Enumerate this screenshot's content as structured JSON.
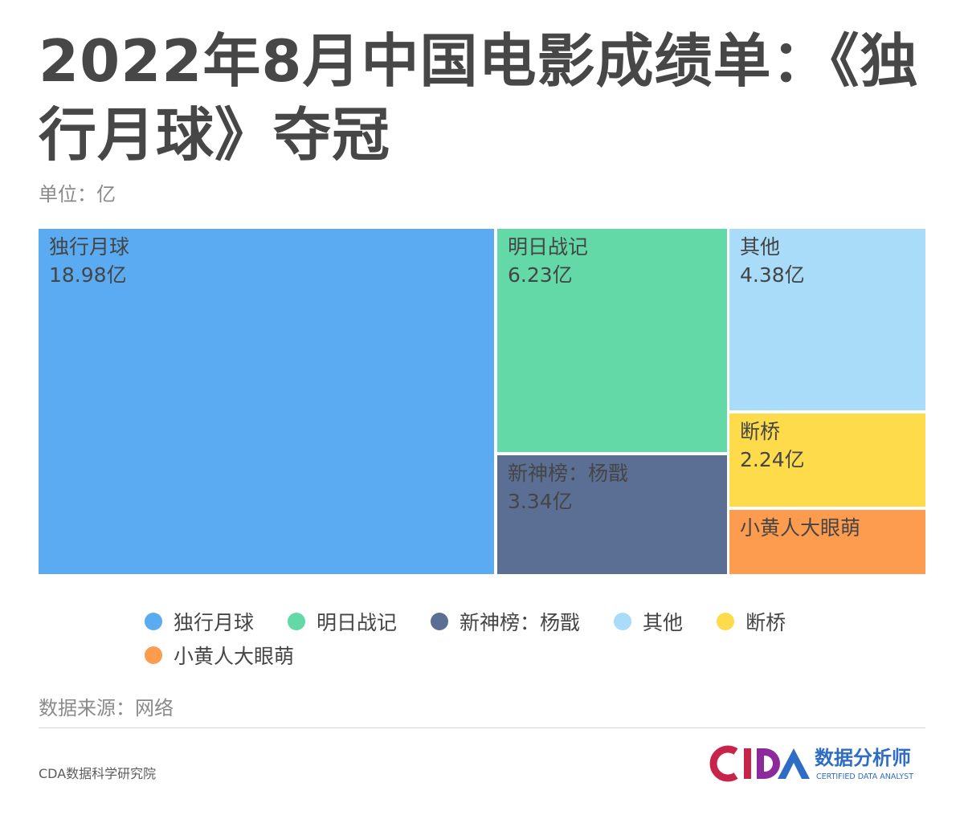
{
  "header": {
    "title": "2022年8月中国电影成绩单：《独行月球》夺冠",
    "unit": "单位：亿"
  },
  "chart_data": {
    "type": "treemap",
    "unit": "亿",
    "items": [
      {
        "name": "独行月球",
        "value": 18.98,
        "label": "18.98亿",
        "color": "#5aabf2"
      },
      {
        "name": "明日战记",
        "value": 6.23,
        "label": "6.23亿",
        "color": "#63d9a8"
      },
      {
        "name": "新神榜：杨戬",
        "value": 3.34,
        "label": "3.34亿",
        "color": "#5b6e93"
      },
      {
        "name": "其他",
        "value": 4.38,
        "label": "4.38亿",
        "color": "#a8dcf8"
      },
      {
        "name": "断桥",
        "value": 2.24,
        "label": "2.24亿",
        "color": "#fddb4a"
      },
      {
        "name": "小黄人大眼萌",
        "value": 1.45,
        "label": "",
        "color": "#fd9b4e"
      }
    ]
  },
  "legend": {
    "items": [
      "独行月球",
      "明日战记",
      "新神榜：杨戬",
      "其他",
      "断桥",
      "小黄人大眼萌"
    ]
  },
  "footer": {
    "source": "数据来源：网络",
    "institute": "CDA数据科学研究院",
    "logo_letters": "CDA",
    "logo_cn": "数据分析师",
    "logo_en": "CERTIFIED DATA ANALYST",
    "logo_colors": {
      "c": "#c8244a",
      "d": "#8c2a9c",
      "a": "#2f6cc4"
    }
  }
}
